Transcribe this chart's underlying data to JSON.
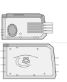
{
  "bg_color": "#ffffff",
  "line_color": "#333333",
  "gray_fill": "#d4d4d4",
  "light_fill": "#ebebeb",
  "white_fill": "#f8f8f8",
  "dpi": 100,
  "fig_width": 0.98,
  "fig_height": 1.19
}
